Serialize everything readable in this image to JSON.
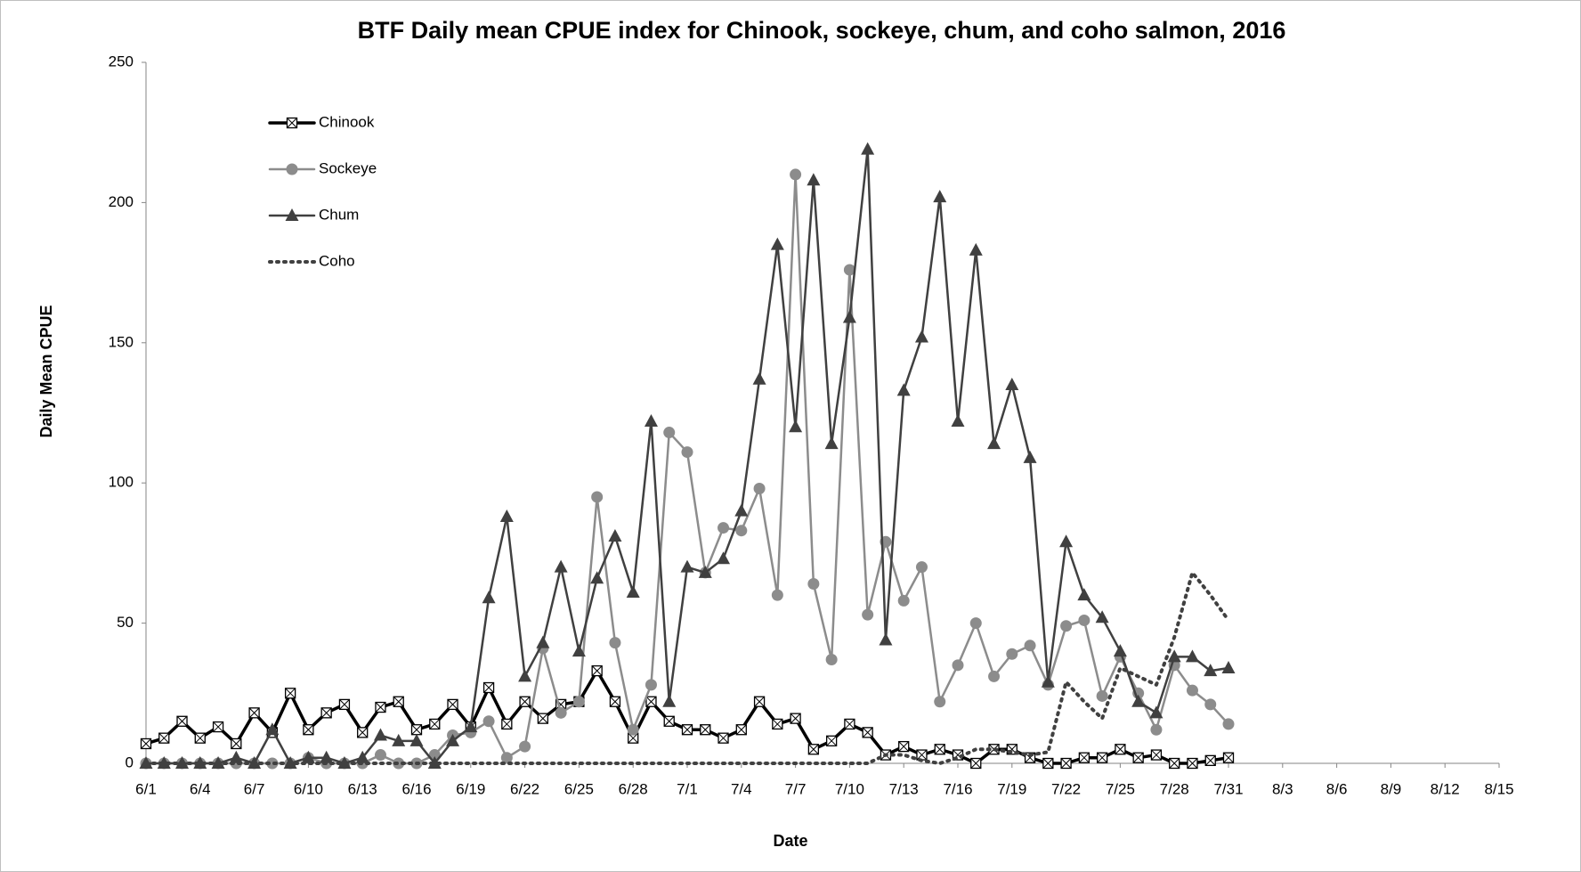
{
  "chart_data": {
    "type": "line",
    "title": "BTF Daily mean CPUE index for Chinook, sockeye, chum, and coho salmon, 2016",
    "x_label": "Date",
    "y_label": "Daily Mean CPUE",
    "categories": [
      "6/1",
      null,
      null,
      "6/4",
      null,
      null,
      "6/7",
      null,
      null,
      "6/10",
      null,
      null,
      "6/13",
      null,
      null,
      "6/16",
      null,
      null,
      "6/19",
      null,
      null,
      "6/22",
      null,
      null,
      "6/25",
      null,
      null,
      "6/28",
      null,
      null,
      "7/1",
      null,
      null,
      "7/4",
      null,
      null,
      "7/7",
      null,
      null,
      "7/10",
      null,
      null,
      "7/13",
      null,
      null,
      "7/16",
      null,
      null,
      "7/19",
      null,
      null,
      "7/22",
      null,
      null,
      "7/25",
      null,
      null,
      "7/28",
      null,
      null,
      "7/31",
      null,
      null,
      "8/3",
      null,
      null,
      "8/6",
      null,
      null,
      "8/9",
      null,
      null,
      "8/12",
      null,
      null,
      "8/15"
    ],
    "series": [
      {
        "name": "Chinook",
        "color": "#000000",
        "marker": "square-x",
        "line_style": "solid",
        "values": [
          7,
          9,
          15,
          9,
          13,
          7,
          18,
          11,
          25,
          12,
          18,
          21,
          11,
          20,
          22,
          12,
          14,
          21,
          13,
          27,
          14,
          22,
          16,
          21,
          22,
          33,
          22,
          9,
          22,
          15,
          12,
          12,
          9,
          12,
          22,
          14,
          16,
          5,
          8,
          14,
          11,
          3,
          6,
          3,
          5,
          3,
          0,
          5,
          5,
          2,
          0,
          0,
          2,
          2,
          5,
          2,
          3,
          0,
          0,
          1,
          2,
          null,
          null,
          null,
          null,
          null,
          null,
          null,
          null,
          null,
          null,
          null,
          null,
          null,
          null,
          null
        ]
      },
      {
        "name": "Sockeye",
        "color": "#8c8c8c",
        "marker": "circle",
        "line_style": "solid",
        "values": [
          0,
          0,
          0,
          0,
          0,
          0,
          0,
          0,
          0,
          2,
          0,
          0,
          0,
          3,
          0,
          0,
          3,
          10,
          11,
          15,
          2,
          6,
          41,
          18,
          22,
          95,
          43,
          12,
          28,
          118,
          111,
          68,
          84,
          83,
          98,
          60,
          210,
          64,
          37,
          176,
          53,
          79,
          58,
          70,
          22,
          35,
          50,
          31,
          39,
          42,
          28,
          49,
          51,
          24,
          38,
          25,
          12,
          35,
          26,
          21,
          14,
          null,
          null,
          null,
          null,
          null,
          null,
          null,
          null,
          null,
          null,
          null,
          null,
          null,
          null,
          null
        ]
      },
      {
        "name": "Chum",
        "color": "#404040",
        "marker": "triangle",
        "line_style": "solid",
        "values": [
          0,
          0,
          0,
          0,
          0,
          2,
          0,
          12,
          0,
          2,
          2,
          0,
          2,
          10,
          8,
          8,
          0,
          8,
          13,
          59,
          88,
          31,
          43,
          70,
          40,
          66,
          81,
          61,
          122,
          22,
          70,
          68,
          73,
          90,
          137,
          185,
          120,
          208,
          114,
          159,
          219,
          44,
          133,
          152,
          202,
          122,
          183,
          114,
          135,
          109,
          29,
          79,
          60,
          52,
          40,
          22,
          18,
          38,
          38,
          33,
          34,
          null,
          null,
          null,
          null,
          null,
          null,
          null,
          null,
          null,
          null,
          null,
          null,
          null,
          null,
          null
        ]
      },
      {
        "name": "Coho",
        "color": "#404040",
        "marker": "none",
        "line_style": "dotted",
        "values": [
          0,
          0,
          0,
          0,
          0,
          0,
          0,
          0,
          0,
          0,
          0,
          0,
          0,
          0,
          0,
          0,
          0,
          0,
          0,
          0,
          0,
          0,
          0,
          0,
          0,
          0,
          0,
          0,
          0,
          0,
          0,
          0,
          0,
          0,
          0,
          0,
          0,
          0,
          0,
          0,
          0,
          3,
          3,
          1,
          0,
          2,
          5,
          5,
          4,
          3,
          4,
          29,
          22,
          16,
          34,
          31,
          28,
          45,
          68,
          60,
          51,
          null,
          null,
          null,
          null,
          null,
          null,
          null,
          null,
          null,
          null,
          null,
          null,
          null,
          null,
          null
        ]
      }
    ],
    "ylim": [
      0,
      250
    ],
    "yticks": [
      0,
      50,
      100,
      150,
      200,
      250
    ],
    "grid": false,
    "legend": "upper left"
  }
}
